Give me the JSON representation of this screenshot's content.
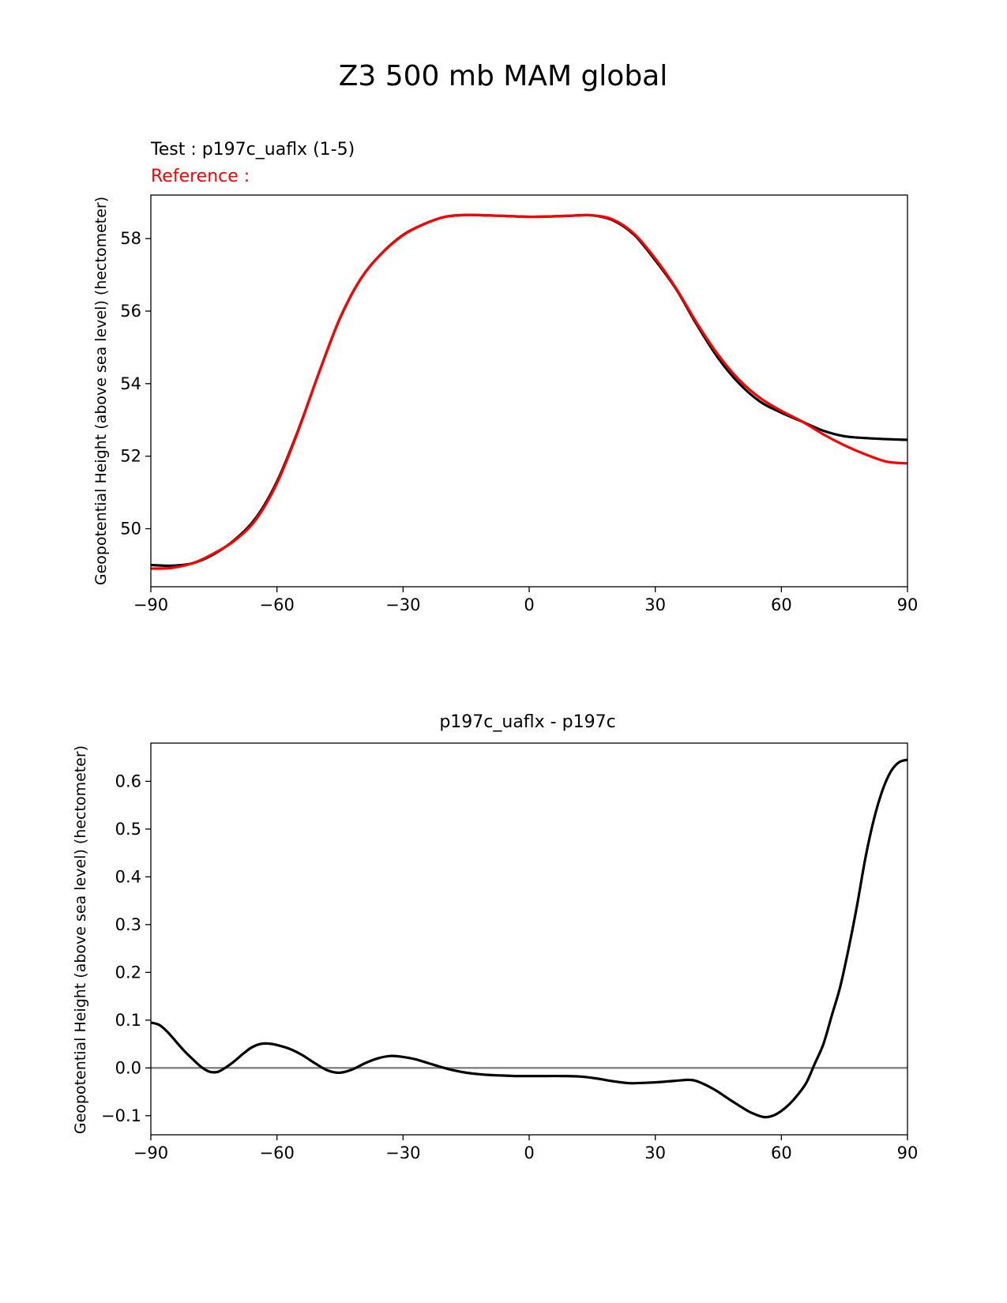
{
  "figure_title": "Z3 500 mb MAM global",
  "colors": {
    "test": "#000000",
    "reference": "#ff0000",
    "zero_line": "#808080",
    "axes": "#000000"
  },
  "chart_data": [
    {
      "type": "line",
      "name": "top-panel",
      "title_left_test": "Test : p197c_uaflx (1-5)",
      "title_left_reference": "Reference :",
      "xlabel": "",
      "ylabel": "Geopotential Height (above sea level) (hectometer)",
      "xlim": [
        -90,
        90
      ],
      "ylim": [
        48.4,
        59.2
      ],
      "xticks": [
        -90,
        -60,
        -30,
        0,
        30,
        60,
        90
      ],
      "xtick_labels": [
        "−90",
        "−60",
        "−30",
        "0",
        "30",
        "60",
        "90"
      ],
      "yticks": [
        50,
        52,
        54,
        56,
        58
      ],
      "ytick_labels": [
        "50",
        "52",
        "54",
        "56",
        "58"
      ],
      "series": [
        {
          "name": "test",
          "color": "#000000",
          "x": [
            -90,
            -85,
            -80,
            -75,
            -70,
            -65,
            -60,
            -55,
            -50,
            -45,
            -40,
            -35,
            -30,
            -25,
            -20,
            -15,
            -10,
            -5,
            0,
            5,
            10,
            15,
            20,
            25,
            30,
            35,
            40,
            45,
            50,
            55,
            60,
            65,
            70,
            75,
            80,
            85,
            90
          ],
          "y": [
            49.0,
            48.98,
            49.05,
            49.3,
            49.7,
            50.3,
            51.3,
            52.7,
            54.3,
            55.8,
            56.9,
            57.6,
            58.1,
            58.4,
            58.6,
            58.65,
            58.64,
            58.62,
            58.6,
            58.61,
            58.63,
            58.64,
            58.5,
            58.1,
            57.4,
            56.6,
            55.6,
            54.7,
            54.0,
            53.5,
            53.2,
            52.95,
            52.7,
            52.55,
            52.5,
            52.47,
            52.45
          ]
        },
        {
          "name": "reference",
          "color": "#ff0000",
          "x": [
            -90,
            -85,
            -80,
            -75,
            -70,
            -65,
            -60,
            -55,
            -50,
            -45,
            -40,
            -35,
            -30,
            -25,
            -20,
            -15,
            -10,
            -5,
            0,
            5,
            10,
            15,
            20,
            25,
            30,
            35,
            40,
            45,
            50,
            55,
            60,
            65,
            70,
            75,
            80,
            85,
            90
          ],
          "y": [
            48.9,
            48.92,
            49.05,
            49.32,
            49.68,
            50.25,
            51.25,
            52.68,
            54.3,
            55.81,
            56.9,
            57.6,
            58.09,
            58.4,
            58.6,
            58.65,
            58.64,
            58.62,
            58.6,
            58.61,
            58.63,
            58.64,
            58.52,
            58.13,
            57.45,
            56.62,
            55.65,
            54.79,
            54.1,
            53.6,
            53.25,
            52.95,
            52.6,
            52.3,
            52.05,
            51.85,
            51.8
          ]
        }
      ]
    },
    {
      "type": "line",
      "name": "bottom-panel",
      "title": "p197c_uaflx - p197c",
      "xlabel": "",
      "ylabel": "Geopotential Height (above sea level) (hectometer)",
      "xlim": [
        -90,
        90
      ],
      "ylim": [
        -0.14,
        0.68
      ],
      "xticks": [
        -90,
        -60,
        -30,
        0,
        30,
        60,
        90
      ],
      "xtick_labels": [
        "−90",
        "−60",
        "−30",
        "0",
        "30",
        "60",
        "90"
      ],
      "yticks": [
        -0.1,
        0.0,
        0.1,
        0.2,
        0.3,
        0.4,
        0.5,
        0.6
      ],
      "ytick_labels": [
        "−0.1",
        "0.0",
        "0.1",
        "0.2",
        "0.3",
        "0.4",
        "0.5",
        "0.6"
      ],
      "hline": 0.0,
      "series": [
        {
          "name": "difference",
          "color": "#000000",
          "x": [
            -90,
            -88,
            -86,
            -84,
            -82,
            -80,
            -78,
            -76,
            -74,
            -72,
            -70,
            -68,
            -66,
            -64,
            -62,
            -60,
            -57,
            -54,
            -51,
            -48,
            -45,
            -42,
            -39,
            -36,
            -33,
            -30,
            -27,
            -24,
            -21,
            -18,
            -15,
            -12,
            -9,
            -6,
            -3,
            0,
            4,
            8,
            12,
            16,
            20,
            24,
            28,
            32,
            36,
            38,
            40,
            44,
            48,
            52,
            54,
            56,
            58,
            60,
            62,
            64,
            66,
            68,
            70,
            72,
            74,
            76,
            78,
            80,
            82,
            84,
            86,
            88,
            90
          ],
          "y": [
            0.095,
            0.09,
            0.075,
            0.055,
            0.035,
            0.018,
            0.002,
            -0.008,
            -0.008,
            0.002,
            0.015,
            0.03,
            0.043,
            0.05,
            0.051,
            0.048,
            0.04,
            0.027,
            0.01,
            -0.005,
            -0.01,
            -0.003,
            0.01,
            0.02,
            0.025,
            0.023,
            0.018,
            0.01,
            0.002,
            -0.005,
            -0.01,
            -0.013,
            -0.015,
            -0.016,
            -0.017,
            -0.017,
            -0.017,
            -0.017,
            -0.018,
            -0.022,
            -0.028,
            -0.032,
            -0.031,
            -0.029,
            -0.026,
            -0.025,
            -0.028,
            -0.045,
            -0.068,
            -0.09,
            -0.098,
            -0.103,
            -0.1,
            -0.09,
            -0.075,
            -0.055,
            -0.03,
            0.01,
            0.05,
            0.11,
            0.17,
            0.25,
            0.34,
            0.44,
            0.52,
            0.58,
            0.62,
            0.64,
            0.645
          ]
        }
      ]
    }
  ]
}
